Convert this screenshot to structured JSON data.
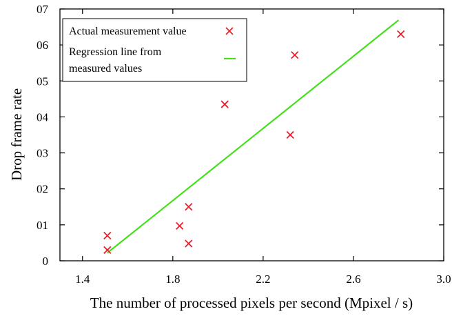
{
  "chart_data": {
    "type": "scatter",
    "xlabel": "The number of processed pixels per second (Mpixel / s)",
    "ylabel": "Drop frame rate",
    "xlim": [
      1.3,
      3.0
    ],
    "ylim": [
      0,
      0.7
    ],
    "x_ticks": [
      1.4,
      1.8,
      2.2,
      2.6,
      3.0
    ],
    "x_tick_labels": [
      "1.4",
      "1.8",
      "2.2",
      "2.6",
      "3.0"
    ],
    "y_ticks": [
      0,
      0.1,
      0.2,
      0.3,
      0.4,
      0.5,
      0.6,
      0.7
    ],
    "y_tick_labels": [
      "0",
      "01",
      "02",
      "03",
      "04",
      "05",
      "06",
      "07"
    ],
    "grid": false,
    "legend_position": "top-left",
    "series": [
      {
        "name": "Actual measurement value",
        "kind": "scatter",
        "marker": "x",
        "color": "#e8202a",
        "points": [
          [
            1.51,
            0.07
          ],
          [
            1.51,
            0.03
          ],
          [
            1.83,
            0.097
          ],
          [
            1.87,
            0.15
          ],
          [
            1.87,
            0.048
          ],
          [
            2.03,
            0.435
          ],
          [
            2.32,
            0.35
          ],
          [
            2.34,
            0.572
          ],
          [
            2.81,
            0.63
          ]
        ]
      },
      {
        "name": "Regression line from\nmeasured values",
        "name_lines": [
          "Regression line from",
          "measured values"
        ],
        "kind": "line",
        "color": "#44e01c",
        "points": [
          [
            1.51,
            0.022
          ],
          [
            2.8,
            0.669
          ]
        ]
      }
    ]
  }
}
